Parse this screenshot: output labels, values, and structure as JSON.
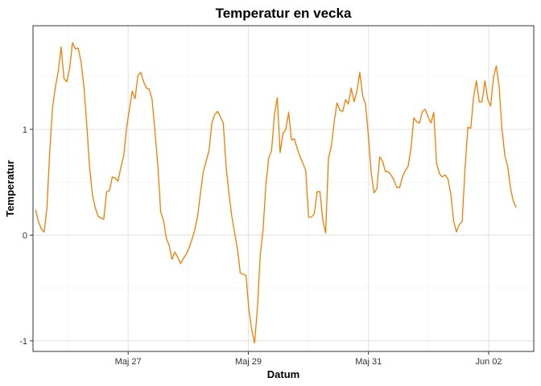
{
  "chart_data": {
    "type": "line",
    "title": "Temperatur en vecka",
    "xlabel": "Datum",
    "ylabel": "Temperatur",
    "x_range": [
      "2022-05-25T11:00",
      "2022-06-02T11:00"
    ],
    "xlim": [
      "2022-05-25T10:00",
      "2022-06-02T18:00"
    ],
    "ylim": [
      -1.1,
      1.98
    ],
    "x_ticks": [
      {
        "label": "Maj 27",
        "date": "2022-05-27T00:00"
      },
      {
        "label": "Maj 29",
        "date": "2022-05-29T00:00"
      },
      {
        "label": "Maj 31",
        "date": "2022-05-31T00:00"
      },
      {
        "label": "Jun 02",
        "date": "2022-06-02T00:00"
      }
    ],
    "x_minor_ticks": [
      "2022-05-26T00:00",
      "2022-05-28T00:00",
      "2022-05-30T00:00",
      "2022-06-01T00:00"
    ],
    "y_ticks": [
      -1,
      0,
      1
    ],
    "y_minor_ticks": [
      -0.5,
      0.5,
      1.5
    ],
    "grid": true,
    "legend": "none",
    "color": "#f57c00",
    "values": [
      0.24,
      0.13,
      0.06,
      0.03,
      0.25,
      0.79,
      1.21,
      1.4,
      1.55,
      1.78,
      1.48,
      1.45,
      1.58,
      1.82,
      1.76,
      1.77,
      1.64,
      1.41,
      1.05,
      0.65,
      0.38,
      0.26,
      0.18,
      0.16,
      0.15,
      0.41,
      0.42,
      0.55,
      0.54,
      0.51,
      0.64,
      0.75,
      1.01,
      1.19,
      1.36,
      1.29,
      1.51,
      1.54,
      1.45,
      1.39,
      1.38,
      1.28,
      0.98,
      0.66,
      0.22,
      0.14,
      -0.03,
      -0.1,
      -0.23,
      -0.16,
      -0.21,
      -0.27,
      -0.22,
      -0.18,
      -0.12,
      -0.04,
      0.05,
      0.18,
      0.4,
      0.6,
      0.7,
      0.8,
      1.06,
      1.14,
      1.17,
      1.12,
      1.06,
      0.65,
      0.39,
      0.18,
      0.02,
      -0.13,
      -0.36,
      -0.37,
      -0.38,
      -0.7,
      -0.89,
      -1.02,
      -0.7,
      -0.19,
      0.05,
      0.48,
      0.73,
      0.8,
      1.14,
      1.3,
      0.78,
      0.96,
      1.0,
      1.16,
      0.9,
      0.91,
      0.82,
      0.74,
      0.68,
      0.61,
      0.17,
      0.17,
      0.2,
      0.41,
      0.41,
      0.14,
      0.02,
      0.73,
      0.84,
      1.07,
      1.25,
      1.18,
      1.17,
      1.28,
      1.24,
      1.39,
      1.26,
      1.36,
      1.54,
      1.32,
      1.24,
      0.95,
      0.59,
      0.4,
      0.44,
      0.74,
      0.7,
      0.6,
      0.6,
      0.57,
      0.52,
      0.45,
      0.45,
      0.55,
      0.61,
      0.65,
      0.82,
      1.11,
      1.07,
      1.06,
      1.17,
      1.19,
      1.12,
      1.06,
      1.16,
      0.68,
      0.58,
      0.55,
      0.57,
      0.53,
      0.39,
      0.13,
      0.03,
      0.1,
      0.13,
      0.63,
      1.02,
      1.01,
      1.3,
      1.46,
      1.26,
      1.26,
      1.46,
      1.28,
      1.22,
      1.49,
      1.6,
      1.4,
      1.0,
      0.75,
      0.65,
      0.44,
      0.32,
      0.26
    ]
  }
}
